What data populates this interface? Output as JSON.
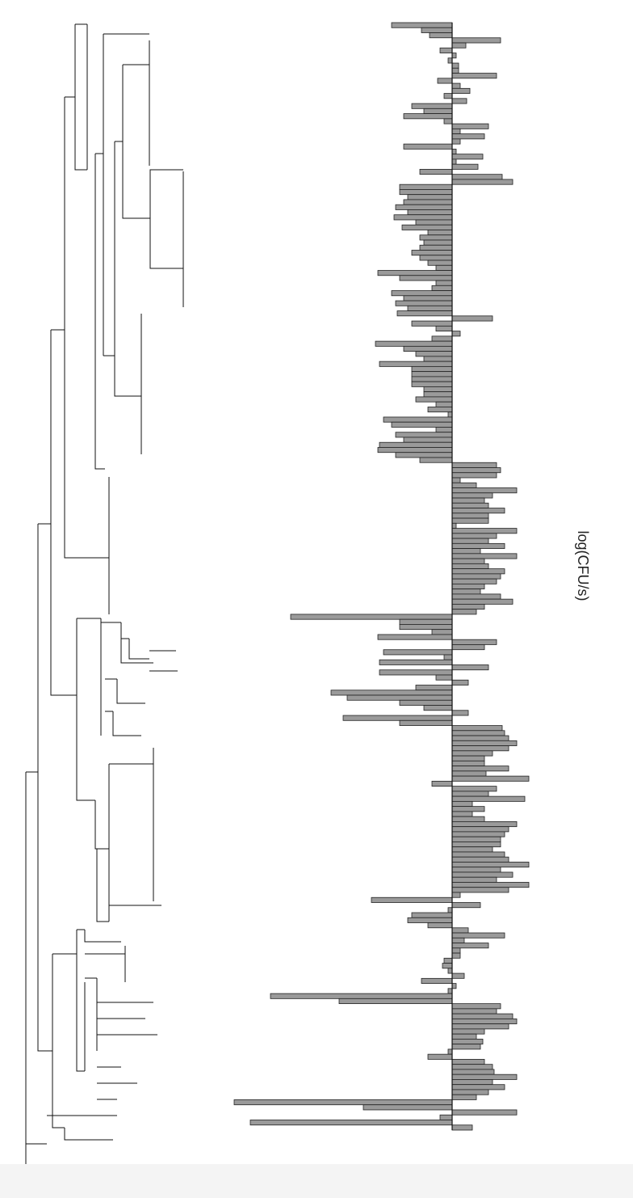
{
  "chart_data": {
    "type": "bar",
    "orientation": "horizontal",
    "x_label": "log(CFU/s)",
    "color": "#9a9a9a",
    "xlim": [
      -2.8,
      1.1
    ],
    "values": [
      -0.75,
      -0.38,
      -0.28,
      0.6,
      0.17,
      -0.15,
      0.05,
      -0.05,
      0.08,
      0.08,
      0.55,
      -0.18,
      0.1,
      0.22,
      -0.1,
      0.18,
      -0.5,
      -0.35,
      -0.6,
      -0.1,
      0.45,
      0.1,
      0.4,
      0.1,
      -0.6,
      0.05,
      0.38,
      0.05,
      0.32,
      -0.4,
      0.62,
      0.75,
      -0.65,
      -0.65,
      -0.55,
      -0.6,
      -0.7,
      -0.55,
      -0.72,
      -0.45,
      -0.62,
      -0.3,
      -0.4,
      -0.35,
      -0.4,
      -0.5,
      -0.4,
      -0.3,
      -0.2,
      -0.92,
      -0.65,
      -0.2,
      -0.25,
      -0.75,
      -0.6,
      -0.7,
      -0.55,
      -0.68,
      0.5,
      -0.5,
      -0.2,
      0.1,
      -0.25,
      -0.95,
      -0.6,
      -0.45,
      -0.35,
      -0.9,
      -0.5,
      -0.5,
      -0.5,
      -0.5,
      -0.35,
      -0.35,
      -0.45,
      -0.2,
      -0.3,
      -0.05,
      -0.85,
      -0.75,
      -0.2,
      -0.7,
      -0.6,
      -0.9,
      -0.92,
      -0.7,
      -0.4,
      0.55,
      0.6,
      0.55,
      0.1,
      0.3,
      0.8,
      0.5,
      0.4,
      0.45,
      0.65,
      0.45,
      0.45,
      0.05,
      0.8,
      0.55,
      0.45,
      0.65,
      0.35,
      0.8,
      0.4,
      0.45,
      0.65,
      0.6,
      0.55,
      0.4,
      0.35,
      0.6,
      0.75,
      0.4,
      0.3,
      -2.0,
      -0.65,
      -0.65,
      -0.25,
      -0.92,
      0.55,
      0.4,
      -0.85,
      -0.1,
      -0.9,
      0.45,
      -0.9,
      -0.2,
      0.2,
      -0.45,
      -1.5,
      -1.3,
      -0.65,
      -0.35,
      0.2,
      -1.35,
      -0.65,
      0.62,
      0.65,
      0.7,
      0.8,
      0.7,
      0.5,
      0.4,
      0.4,
      0.7,
      0.42,
      0.95,
      -0.25,
      0.55,
      0.45,
      0.9,
      0.25,
      0.4,
      0.25,
      0.4,
      0.8,
      0.7,
      0.65,
      0.6,
      0.6,
      0.5,
      0.65,
      0.7,
      0.95,
      0.6,
      0.75,
      0.55,
      0.95,
      0.7,
      0.1,
      -1.0,
      0.35,
      -0.05,
      -0.5,
      -0.55,
      -0.3,
      0.2,
      0.65,
      0.15,
      0.45,
      0.1,
      0.1,
      -0.1,
      -0.12,
      -0.05,
      0.15,
      -0.38,
      0.05,
      -0.05,
      -2.25,
      -1.4,
      0.6,
      0.55,
      0.75,
      0.8,
      0.7,
      0.4,
      0.3,
      0.38,
      0.35,
      -0.05,
      -0.3,
      0.4,
      0.5,
      0.52,
      0.8,
      0.5,
      0.65,
      0.45,
      0.3,
      -2.7,
      -1.1,
      0.8,
      -0.15,
      -2.5,
      0.25
    ]
  }
}
